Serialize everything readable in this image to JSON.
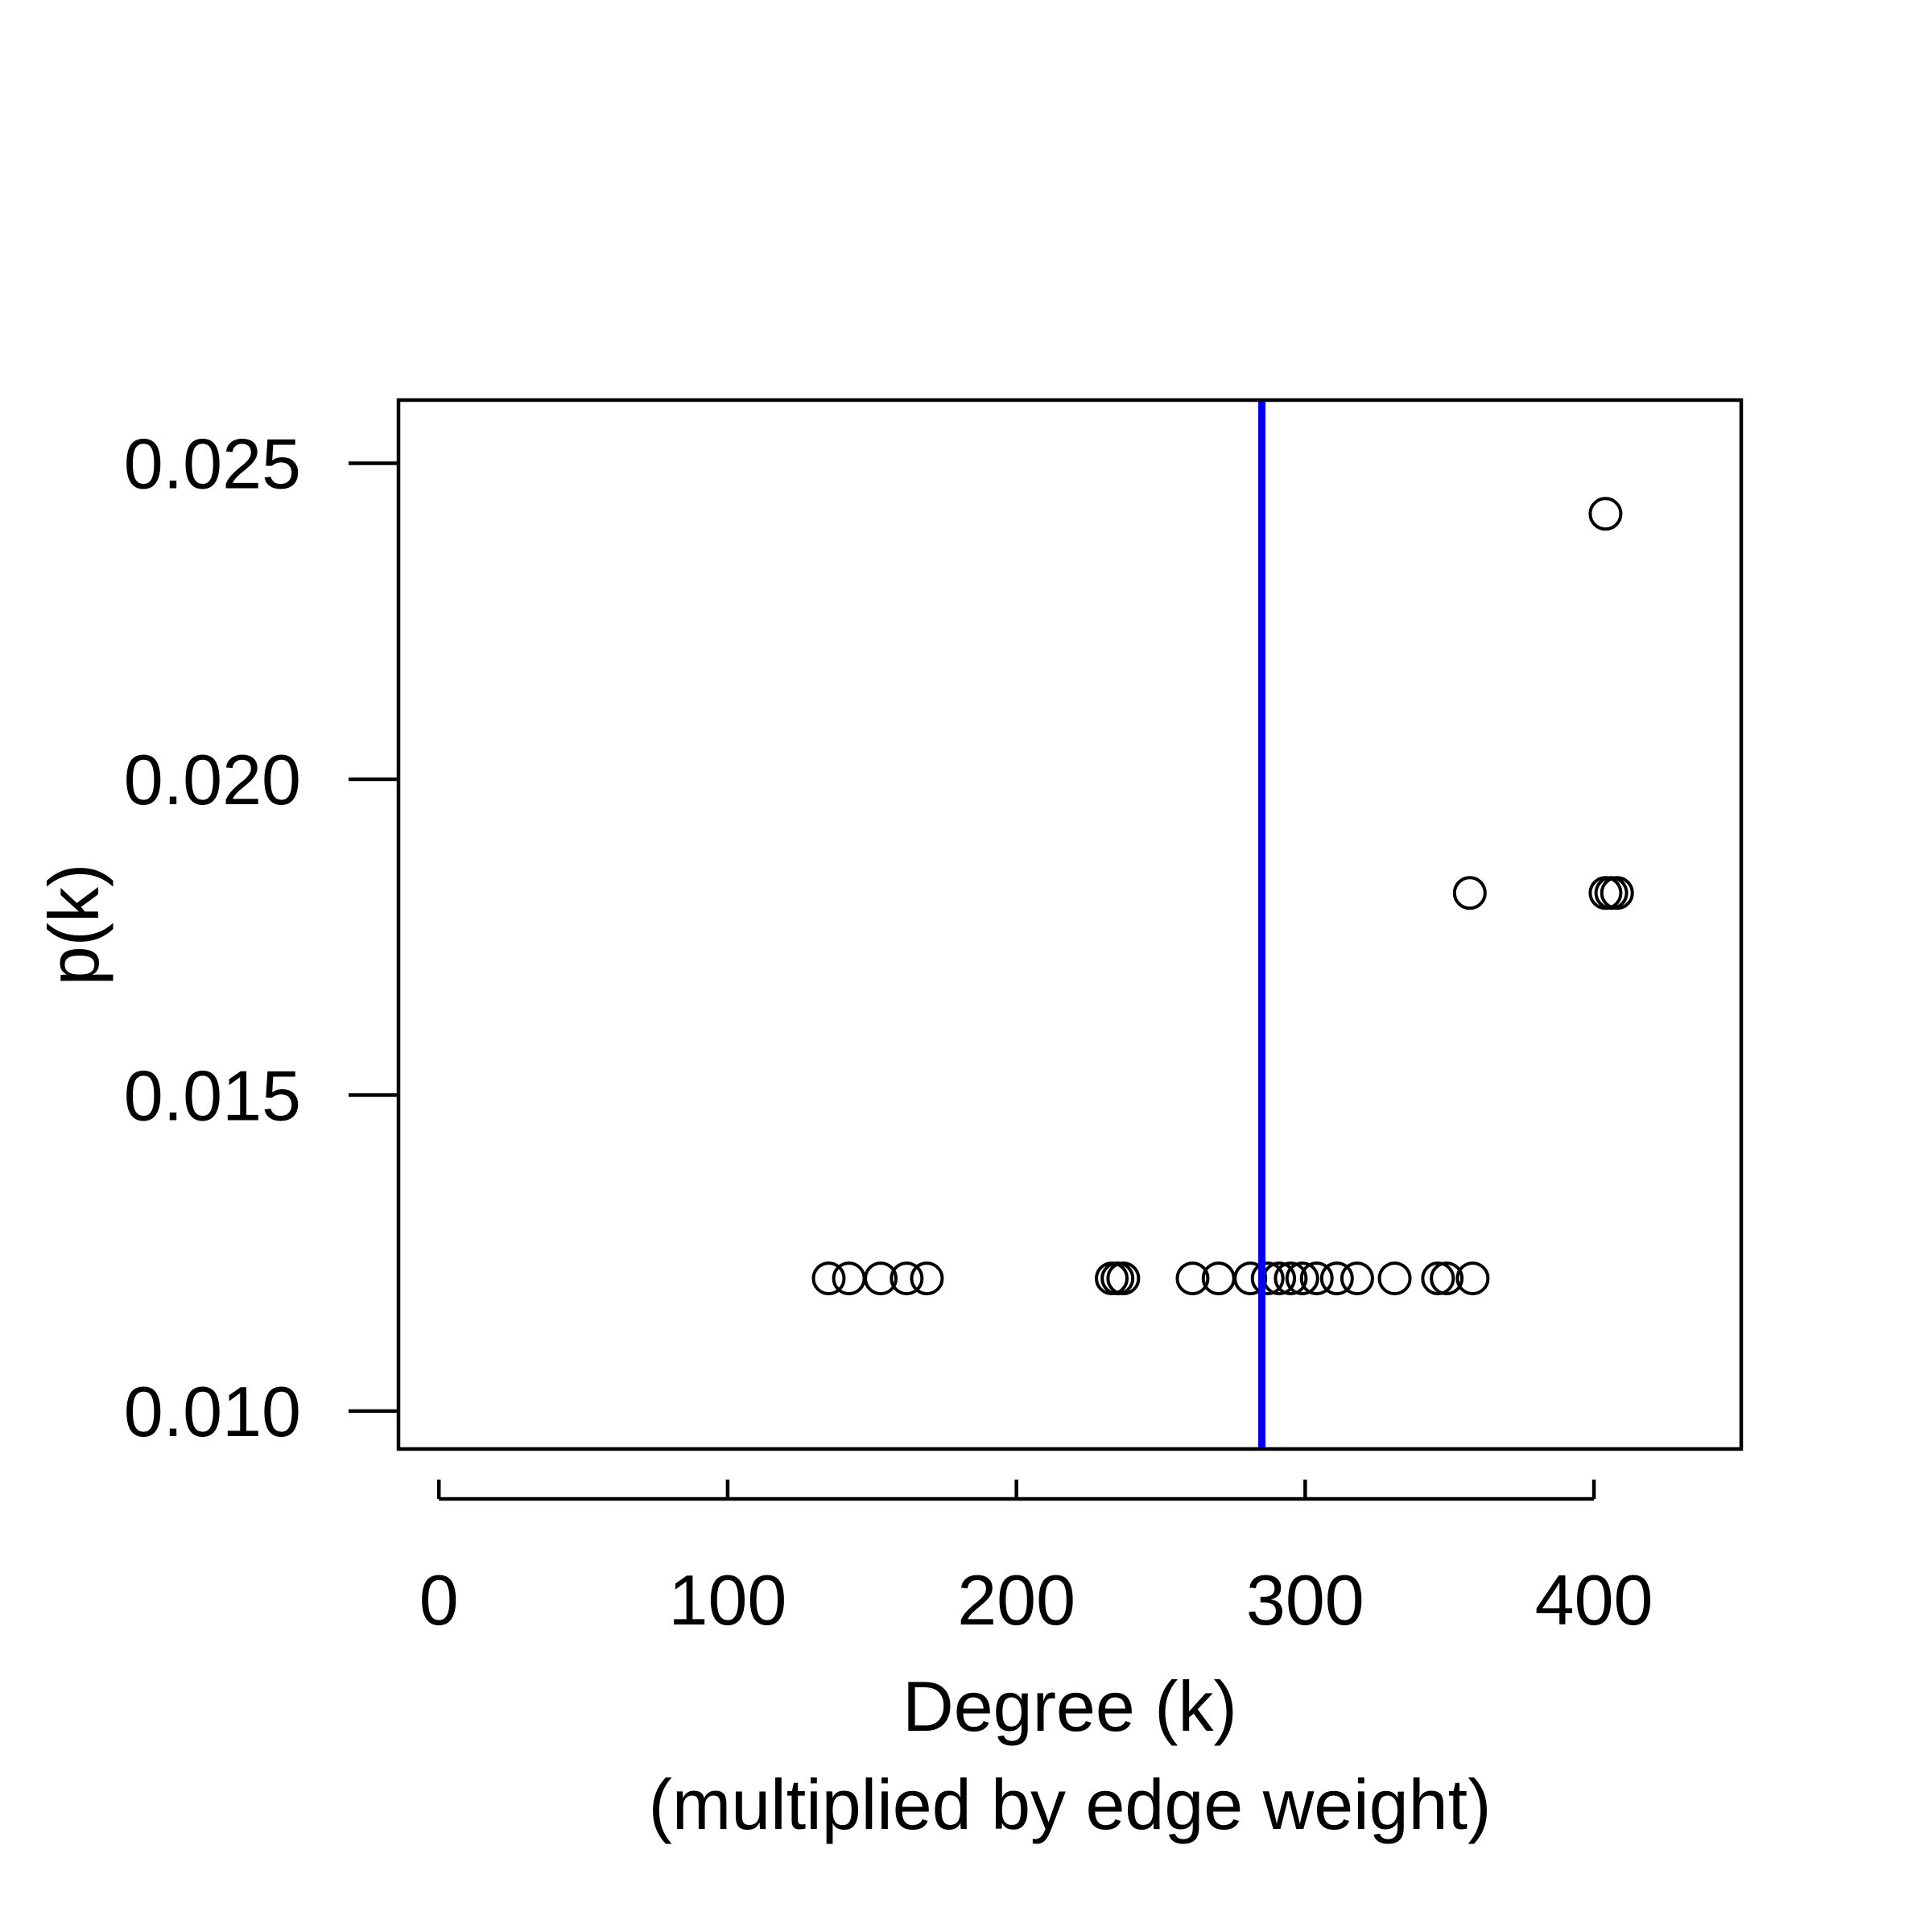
{
  "chart_data": {
    "type": "scatter",
    "xlabel": "Degree (k)",
    "xlabel_sub": "(multiplied by edge weight)",
    "ylabel": "p(k)",
    "xlim": [
      -14,
      451
    ],
    "ylim": [
      0.0094,
      0.026
    ],
    "x_ticks": [
      0,
      100,
      200,
      300,
      400
    ],
    "x_tick_labels": [
      "0",
      "100",
      "200",
      "300",
      "400"
    ],
    "y_ticks": [
      0.01,
      0.015,
      0.02,
      0.025
    ],
    "y_tick_labels": [
      "0.010",
      "0.015",
      "0.020",
      "0.025"
    ],
    "vline": {
      "x": 285,
      "color": "#0000ee"
    },
    "point_style": {
      "marker": "open-circle",
      "color": "#000000"
    },
    "grid": false,
    "points": [
      {
        "x": 135,
        "y": 0.0121
      },
      {
        "x": 142,
        "y": 0.0121
      },
      {
        "x": 153,
        "y": 0.0121
      },
      {
        "x": 162,
        "y": 0.0121
      },
      {
        "x": 169,
        "y": 0.0121
      },
      {
        "x": 233,
        "y": 0.0121
      },
      {
        "x": 235,
        "y": 0.0121
      },
      {
        "x": 237,
        "y": 0.0121
      },
      {
        "x": 261,
        "y": 0.0121
      },
      {
        "x": 270,
        "y": 0.0121
      },
      {
        "x": 281,
        "y": 0.0121
      },
      {
        "x": 287,
        "y": 0.0121
      },
      {
        "x": 291,
        "y": 0.0121
      },
      {
        "x": 295,
        "y": 0.0121
      },
      {
        "x": 299,
        "y": 0.0121
      },
      {
        "x": 304,
        "y": 0.0121
      },
      {
        "x": 311,
        "y": 0.0121
      },
      {
        "x": 318,
        "y": 0.0121
      },
      {
        "x": 331,
        "y": 0.0121
      },
      {
        "x": 346,
        "y": 0.0121
      },
      {
        "x": 349,
        "y": 0.0121
      },
      {
        "x": 358,
        "y": 0.0121
      },
      {
        "x": 357,
        "y": 0.0182
      },
      {
        "x": 404,
        "y": 0.0182
      },
      {
        "x": 406,
        "y": 0.0182
      },
      {
        "x": 408,
        "y": 0.0182
      },
      {
        "x": 404,
        "y": 0.0242
      }
    ]
  }
}
